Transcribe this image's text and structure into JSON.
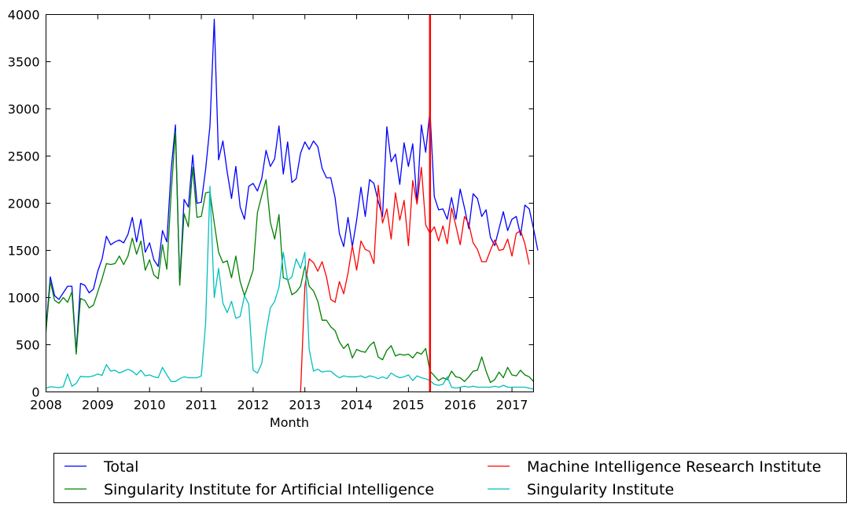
{
  "chart_data": {
    "type": "line",
    "title": "",
    "xlabel": "Month",
    "ylabel": "",
    "xlim": [
      2008.0,
      2017.4167
    ],
    "ylim": [
      0,
      4000
    ],
    "grid": false,
    "legend_position": "bottom",
    "x_ticks": [
      2008,
      2009,
      2010,
      2011,
      2012,
      2013,
      2014,
      2015,
      2016,
      2017
    ],
    "x_tick_labels": [
      "2008",
      "2009",
      "2010",
      "2011",
      "2012",
      "2013",
      "2014",
      "2015",
      "2016",
      "2017"
    ],
    "y_ticks": [
      0,
      500,
      1000,
      1500,
      2000,
      2500,
      3000,
      3500,
      4000
    ],
    "y_tick_labels": [
      "0",
      "500",
      "1000",
      "1500",
      "2000",
      "2500",
      "3000",
      "3500",
      "4000"
    ],
    "vertical_marker": {
      "x": 2015.4167,
      "color": "#ff0000"
    },
    "series": [
      {
        "name": "Total",
        "color": "#0000ff",
        "x_start": 2008.0,
        "x_step": 0.08333,
        "values": [
          680,
          1220,
          1020,
          980,
          1050,
          1120,
          1120,
          420,
          1150,
          1130,
          1050,
          1090,
          1280,
          1410,
          1650,
          1560,
          1590,
          1610,
          1580,
          1670,
          1850,
          1590,
          1830,
          1480,
          1580,
          1400,
          1330,
          1710,
          1590,
          2350,
          2830,
          1140,
          2040,
          1960,
          2510,
          2000,
          2010,
          2360,
          2820,
          3950,
          2460,
          2660,
          2330,
          2050,
          2390,
          1960,
          1830,
          2180,
          2210,
          2130,
          2260,
          2560,
          2390,
          2470,
          2820,
          2310,
          2650,
          2220,
          2260,
          2530,
          2650,
          2570,
          2660,
          2600,
          2370,
          2270,
          2270,
          2060,
          1680,
          1540,
          1850,
          1540,
          1820,
          2170,
          1860,
          2250,
          2210,
          2020,
          1860,
          2810,
          2440,
          2520,
          2200,
          2640,
          2390,
          2630,
          2000,
          2830,
          2540,
          2980,
          2070,
          1930,
          1940,
          1830,
          2060,
          1830,
          2150,
          1950,
          1730,
          2100,
          2050,
          1860,
          1930,
          1640,
          1550,
          1730,
          1910,
          1710,
          1830,
          1860,
          1660,
          1980,
          1940,
          1730,
          1500
        ]
      },
      {
        "name": "Singularity Institute for Artificial Intelligence",
        "color": "#008000",
        "x_start": 2008.0,
        "x_step": 0.08333,
        "values": [
          640,
          1170,
          970,
          940,
          1000,
          950,
          1060,
          400,
          990,
          970,
          890,
          920,
          1060,
          1200,
          1360,
          1350,
          1360,
          1440,
          1350,
          1440,
          1630,
          1460,
          1600,
          1290,
          1400,
          1240,
          1200,
          1560,
          1300,
          2100,
          2760,
          1130,
          1890,
          1750,
          2380,
          1850,
          1860,
          2110,
          2120,
          1790,
          1480,
          1370,
          1390,
          1210,
          1440,
          1170,
          1020,
          1150,
          1290,
          1900,
          2080,
          2250,
          1800,
          1620,
          1880,
          1210,
          1190,
          1030,
          1060,
          1120,
          1330,
          1120,
          1070,
          960,
          760,
          760,
          690,
          650,
          530,
          460,
          510,
          360,
          450,
          430,
          420,
          490,
          530,
          370,
          340,
          440,
          490,
          380,
          400,
          390,
          400,
          360,
          420,
          400,
          460,
          220,
          170,
          120,
          150,
          130,
          220,
          160,
          150,
          110,
          160,
          220,
          230,
          370,
          220,
          100,
          130,
          210,
          150,
          260,
          180,
          170,
          230,
          180,
          160,
          110
        ]
      },
      {
        "name": "Machine Intelligence Research Institute",
        "color": "#ff0000",
        "x_start": 2012.9167,
        "x_step": 0.08333,
        "values": [
          0,
          1120,
          1410,
          1370,
          1280,
          1380,
          1220,
          980,
          950,
          1170,
          1040,
          1260,
          1550,
          1290,
          1600,
          1510,
          1490,
          1360,
          2190,
          1790,
          1940,
          1620,
          2110,
          1820,
          2030,
          1550,
          2240,
          1990,
          2380,
          1770,
          1680,
          1750,
          1600,
          1760,
          1570,
          1950,
          1760,
          1560,
          1860,
          1780,
          1580,
          1510,
          1380,
          1380,
          1500,
          1610,
          1500,
          1510,
          1620,
          1440,
          1680,
          1710,
          1570,
          1350
        ]
      },
      {
        "name": "Singularity Institute",
        "color": "#00bfbf",
        "x_start": 2008.0,
        "x_step": 0.08333,
        "values": [
          40,
          55,
          50,
          45,
          55,
          190,
          60,
          90,
          165,
          160,
          160,
          170,
          190,
          175,
          290,
          220,
          230,
          200,
          220,
          240,
          220,
          180,
          230,
          170,
          180,
          160,
          150,
          260,
          180,
          110,
          110,
          140,
          160,
          150,
          150,
          150,
          170,
          730,
          2180,
          1000,
          1310,
          940,
          840,
          960,
          780,
          800,
          1020,
          930,
          230,
          200,
          300,
          630,
          890,
          960,
          1110,
          1480,
          1180,
          1220,
          1410,
          1310,
          1480,
          450,
          220,
          240,
          210,
          220,
          220,
          180,
          150,
          170,
          160,
          160,
          160,
          170,
          150,
          170,
          160,
          140,
          160,
          140,
          200,
          170,
          150,
          160,
          180,
          120,
          170,
          150,
          140,
          120,
          80,
          70,
          80,
          160,
          50,
          40,
          50,
          60,
          50,
          60,
          50,
          50,
          50,
          50,
          60,
          50,
          70,
          50,
          50,
          50,
          50,
          50,
          40,
          30
        ]
      }
    ]
  }
}
